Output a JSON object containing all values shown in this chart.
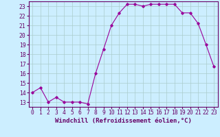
{
  "x": [
    0,
    1,
    2,
    3,
    4,
    5,
    6,
    7,
    8,
    9,
    10,
    11,
    12,
    13,
    14,
    15,
    16,
    17,
    18,
    19,
    20,
    21,
    22,
    23
  ],
  "y": [
    14.0,
    14.5,
    13.0,
    13.5,
    13.0,
    13.0,
    13.0,
    12.8,
    16.0,
    18.5,
    21.0,
    22.3,
    23.2,
    23.2,
    23.0,
    23.2,
    23.2,
    23.2,
    23.2,
    22.3,
    22.3,
    21.2,
    19.0,
    16.7
  ],
  "xlim": [
    -0.5,
    23.5
  ],
  "ylim": [
    12.5,
    23.5
  ],
  "yticks": [
    13,
    14,
    15,
    16,
    17,
    18,
    19,
    20,
    21,
    22,
    23
  ],
  "xticks": [
    0,
    1,
    2,
    3,
    4,
    5,
    6,
    7,
    8,
    9,
    10,
    11,
    12,
    13,
    14,
    15,
    16,
    17,
    18,
    19,
    20,
    21,
    22,
    23
  ],
  "line_color": "#990099",
  "marker": "D",
  "marker_size": 1.8,
  "bg_color": "#cceeff",
  "grid_color": "#aacccc",
  "xlabel": "Windchill (Refroidissement éolien,°C)",
  "xlabel_color": "#660066",
  "tick_color": "#660066",
  "axis_color": "#660066",
  "font_size_label": 6.5,
  "font_size_tick": 5.8
}
